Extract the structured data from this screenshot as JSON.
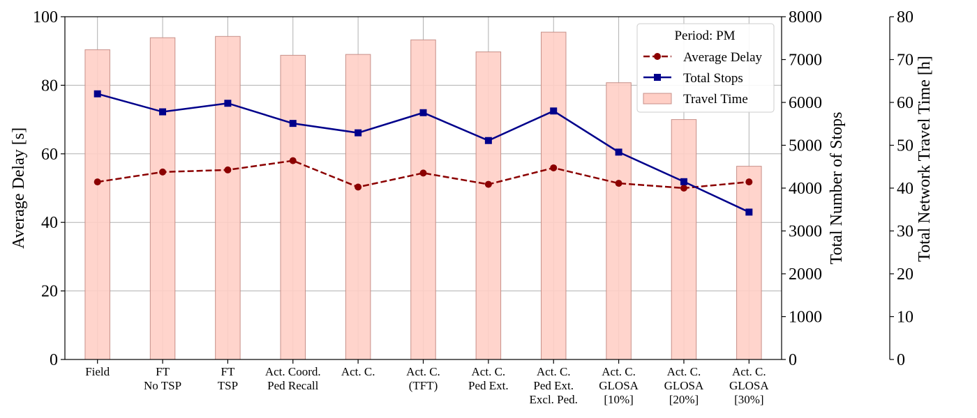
{
  "chart_data": {
    "type": "bar+line",
    "categories": [
      [
        "Field"
      ],
      [
        "FT",
        "No TSP"
      ],
      [
        "FT",
        "TSP"
      ],
      [
        "Act. Coord.",
        "Ped Recall"
      ],
      [
        "Act. C."
      ],
      [
        "Act. C.",
        "(TFT)"
      ],
      [
        "Act. C.",
        "Ped Ext."
      ],
      [
        "Act. C.",
        "Ped Ext.",
        "Excl. Ped."
      ],
      [
        "Act. C.",
        "GLOSA",
        "[10%]"
      ],
      [
        "Act. C.",
        "GLOSA",
        "[20%]"
      ],
      [
        "Act. C.",
        "GLOSA",
        "[30%]"
      ]
    ],
    "series": [
      {
        "name": "Average Delay",
        "type": "line",
        "style": "dashed",
        "marker": "circle",
        "color": "#8b0000",
        "axis": "left",
        "values": [
          51.8,
          54.7,
          55.3,
          58.0,
          50.3,
          54.4,
          51.1,
          55.9,
          51.4,
          50.0,
          51.8
        ]
      },
      {
        "name": "Total Stops",
        "type": "line",
        "style": "solid",
        "marker": "square",
        "color": "#00008b",
        "axis": "right1",
        "values": [
          6200,
          5780,
          5980,
          5510,
          5290,
          5760,
          5110,
          5800,
          4840,
          4150,
          3440
        ]
      },
      {
        "name": "Travel Time",
        "type": "bar",
        "color": "#ffcfc6",
        "edge": "#c78f88",
        "axis": "right2",
        "values": [
          72.3,
          75.1,
          75.4,
          71.0,
          71.2,
          74.6,
          71.8,
          76.4,
          64.6,
          56.0,
          45.1
        ]
      }
    ],
    "axes": {
      "left": {
        "label": "Average Delay [s]",
        "ylim": [
          0,
          100
        ],
        "ticks": [
          "0",
          "20",
          "40",
          "60",
          "80",
          "100"
        ]
      },
      "right1": {
        "label": "Total Number of Stops",
        "ylim": [
          0,
          8000
        ],
        "ticks": [
          "0",
          "1000",
          "2000",
          "3000",
          "4000",
          "5000",
          "6000",
          "7000",
          "8000"
        ]
      },
      "right2": {
        "label": "Total Network Travel Time [h]",
        "ylim": [
          0,
          80
        ],
        "ticks": [
          "0",
          "10",
          "20",
          "30",
          "40",
          "50",
          "60",
          "70",
          "80"
        ]
      }
    },
    "legend": {
      "title": "Period: PM",
      "position": "top-right"
    },
    "grid": true
  }
}
